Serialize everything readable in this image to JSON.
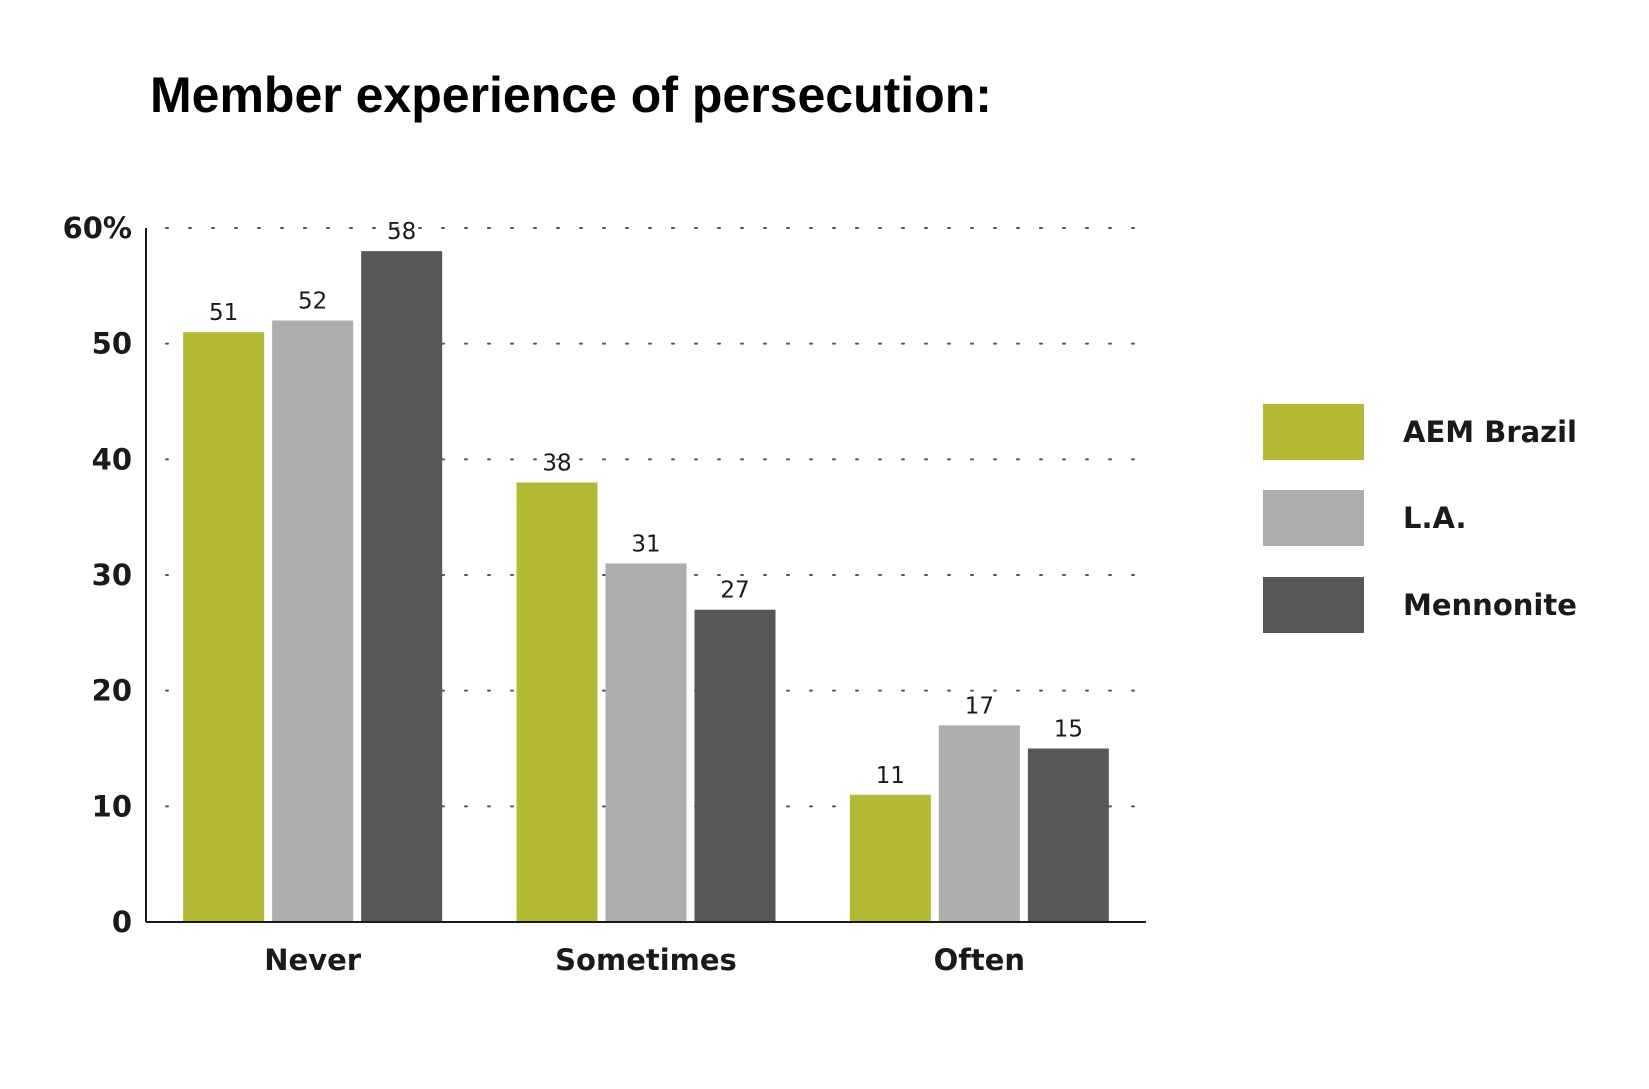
{
  "chart_data": {
    "type": "bar",
    "title": "Member experience of persecution:",
    "categories": [
      "Never",
      "Sometimes",
      "Often"
    ],
    "series": [
      {
        "name": "AEM Brazil",
        "color": "#b3b934",
        "values": [
          51,
          38,
          11
        ]
      },
      {
        "name": "L.A.",
        "color": "#adadad",
        "values": [
          52,
          31,
          17
        ]
      },
      {
        "name": "Mennonite",
        "color": "#575757",
        "values": [
          58,
          27,
          15
        ]
      }
    ],
    "ylim": [
      0,
      60
    ],
    "yticks": [
      {
        "value": 0,
        "label": "0"
      },
      {
        "value": 10,
        "label": "10"
      },
      {
        "value": 20,
        "label": "20"
      },
      {
        "value": 30,
        "label": "30"
      },
      {
        "value": 40,
        "label": "40"
      },
      {
        "value": 50,
        "label": "50"
      },
      {
        "value": 60,
        "label": "60%"
      }
    ],
    "grid": "dotted horizontal",
    "legend_position": "right",
    "data_labels": true
  }
}
